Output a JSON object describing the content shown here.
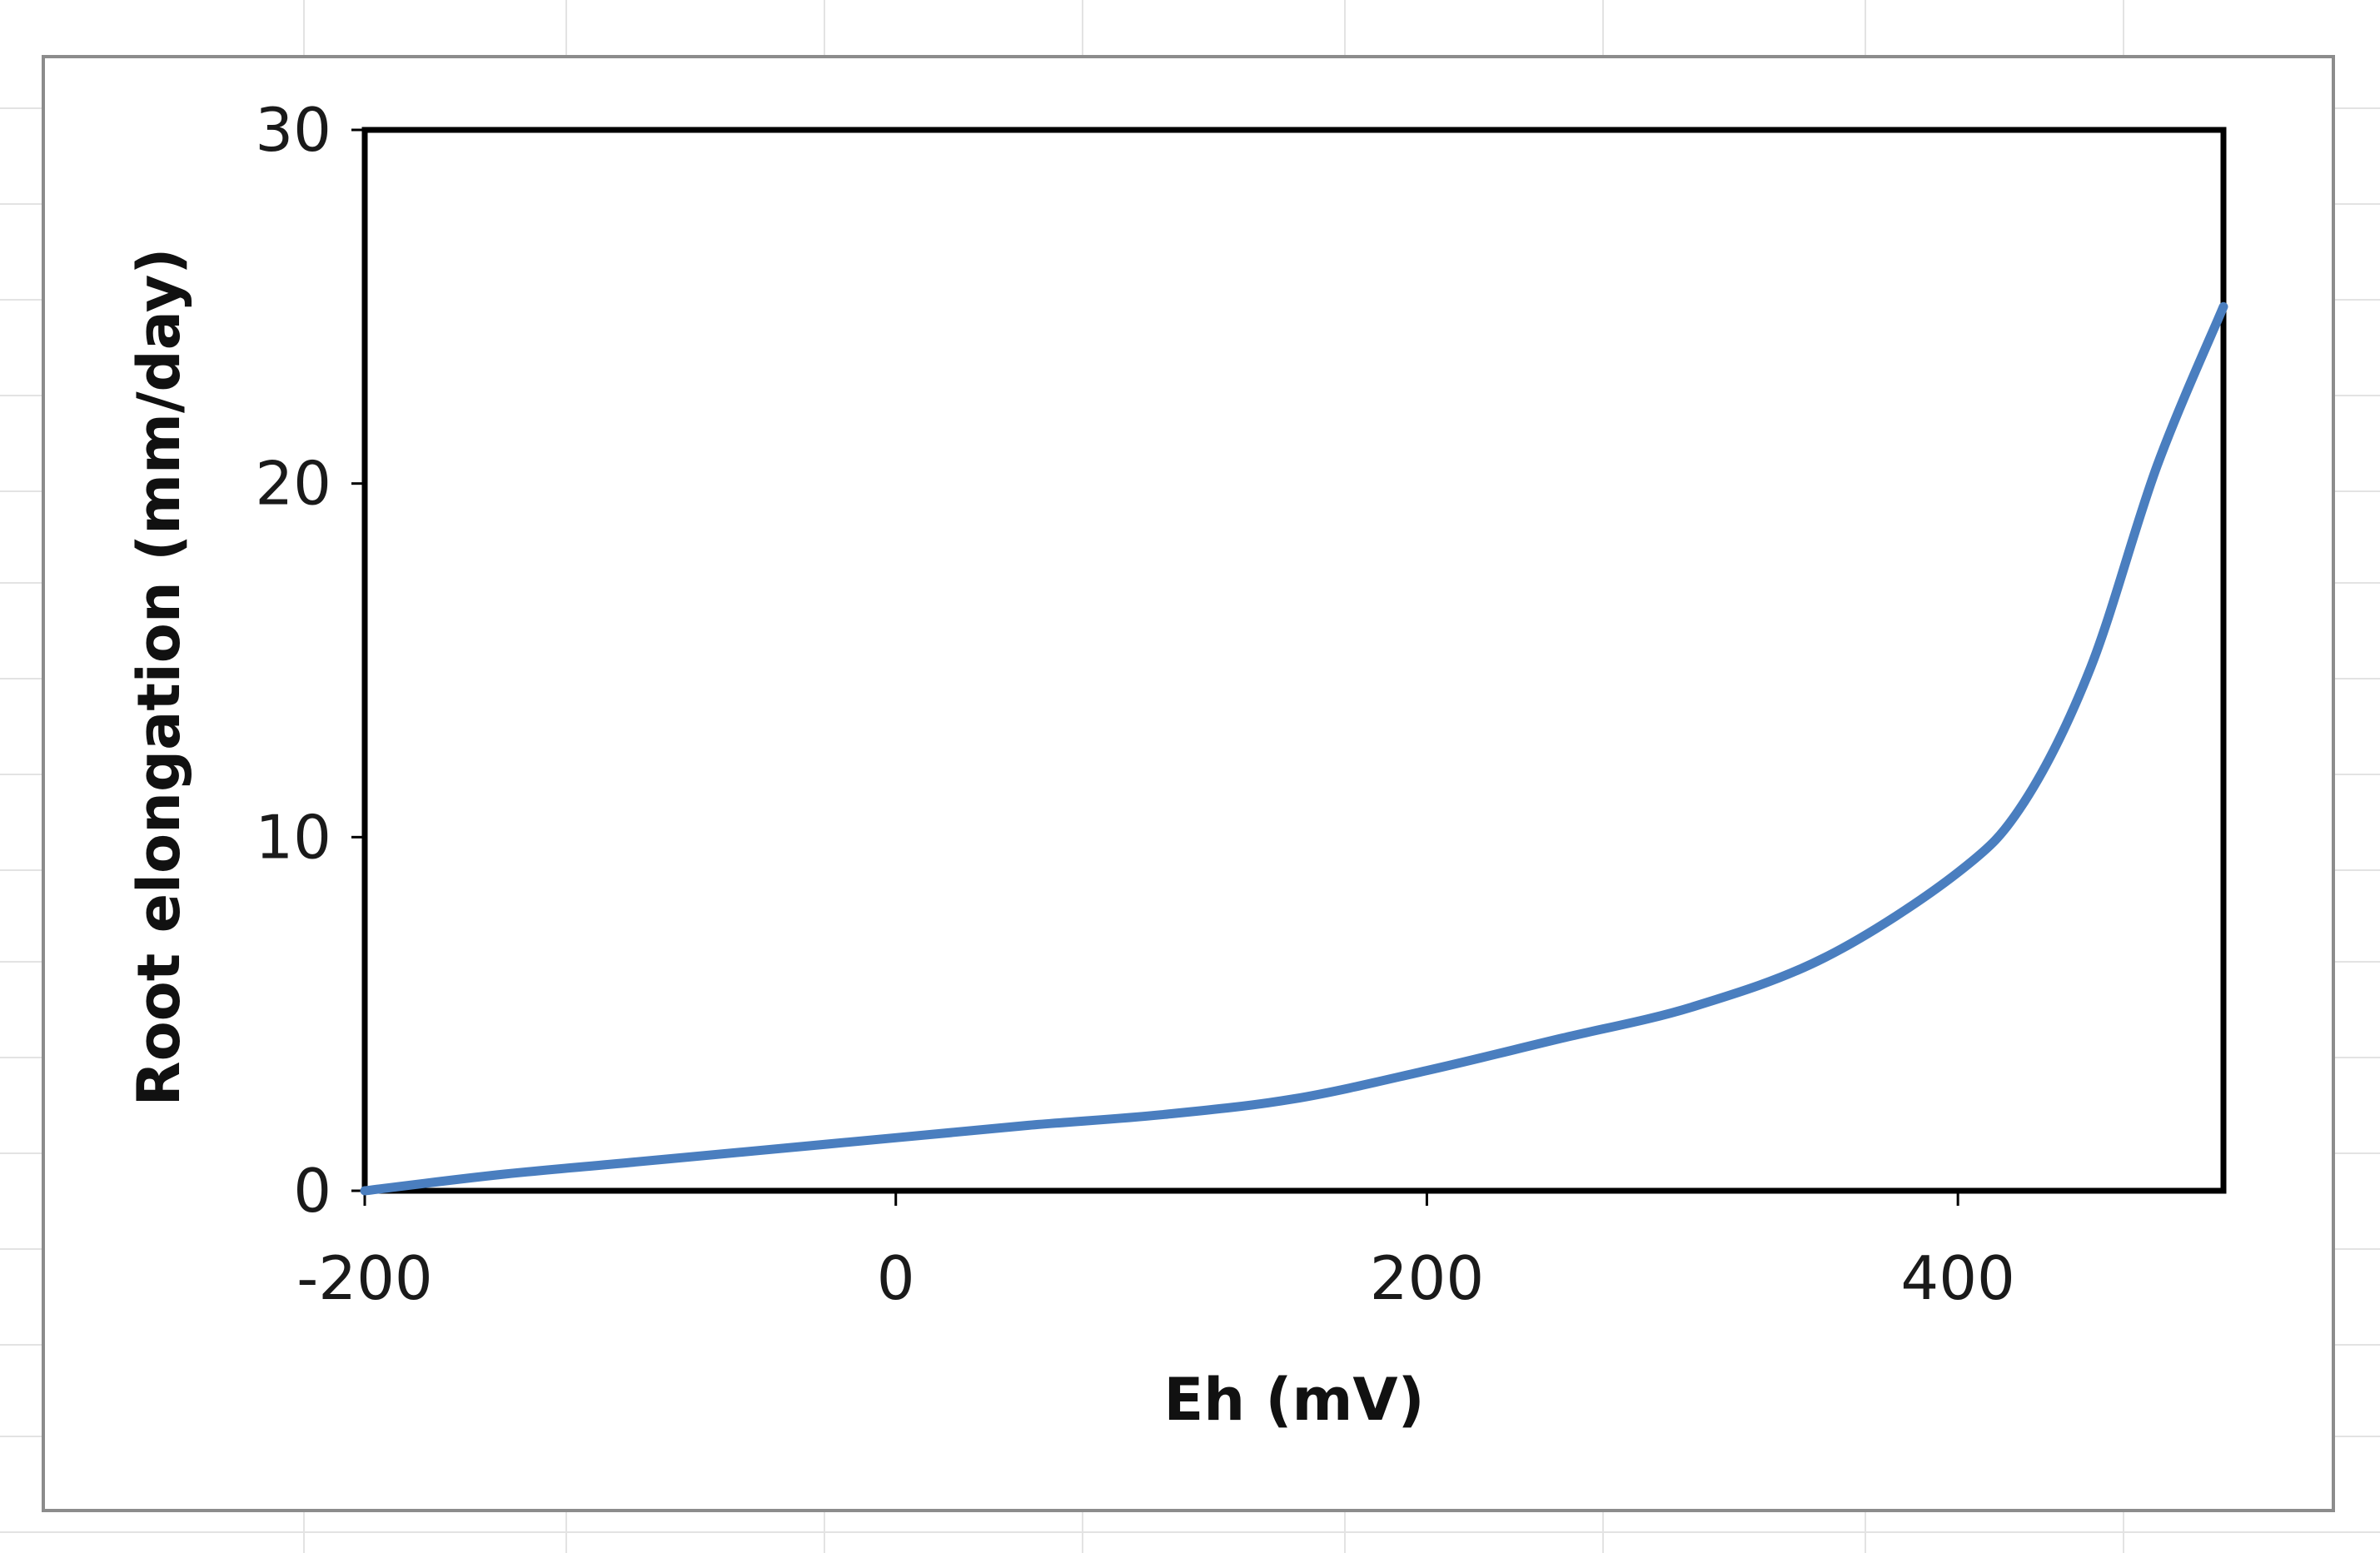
{
  "chart_data": {
    "type": "line",
    "title": "",
    "xlabel": "Eh (mV)",
    "ylabel": "Root elongation (mm/day)",
    "xlim": [
      -200,
      500
    ],
    "ylim": [
      0,
      30
    ],
    "x_ticks": [
      -200,
      0,
      200,
      400
    ],
    "y_ticks": [
      0,
      10,
      20,
      30
    ],
    "grid": false,
    "legend": "none",
    "series": [
      {
        "color": "#4a7ebf",
        "x": [
          -200,
          -150,
          -100,
          -50,
          0,
          50,
          100,
          150,
          200,
          250,
          300,
          350,
          400,
          425,
          450,
          475,
          500
        ],
        "y": [
          0,
          0.45,
          0.8,
          1.15,
          1.5,
          1.85,
          2.15,
          2.6,
          3.4,
          4.3,
          5.2,
          6.6,
          9.0,
          11.0,
          14.8,
          20.5,
          25.0
        ]
      }
    ]
  }
}
